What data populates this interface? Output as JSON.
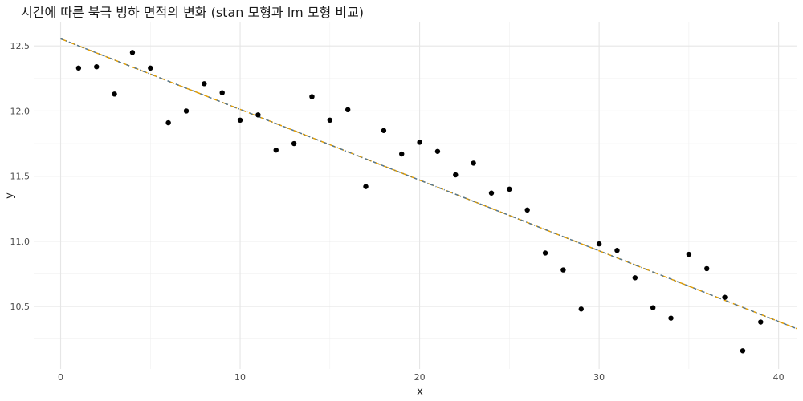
{
  "chart_data": {
    "type": "scatter",
    "title": "시간에 따른 북극 빙하 면적의 변화 (stan 모형과 lm 모형 비교)",
    "xlabel": "x",
    "ylabel": "y",
    "xlim": [
      -1.5,
      41
    ],
    "ylim": [
      10.02,
      12.68
    ],
    "x_ticks": [
      0,
      10,
      20,
      30,
      40
    ],
    "x_tick_labels": [
      "0",
      "10",
      "20",
      "30",
      "40"
    ],
    "y_ticks": [
      10.5,
      11.0,
      11.5,
      12.0,
      12.5
    ],
    "y_tick_labels": [
      "10.5",
      "11.0",
      "11.5",
      "12.0",
      "12.5"
    ],
    "grid": true,
    "points": [
      {
        "x": 1,
        "y": 12.33
      },
      {
        "x": 2,
        "y": 12.34
      },
      {
        "x": 3,
        "y": 12.13
      },
      {
        "x": 4,
        "y": 12.45
      },
      {
        "x": 5,
        "y": 12.33
      },
      {
        "x": 6,
        "y": 11.91
      },
      {
        "x": 7,
        "y": 12.0
      },
      {
        "x": 8,
        "y": 12.21
      },
      {
        "x": 9,
        "y": 12.14
      },
      {
        "x": 10,
        "y": 11.93
      },
      {
        "x": 11,
        "y": 11.97
      },
      {
        "x": 12,
        "y": 11.7
      },
      {
        "x": 13,
        "y": 11.75
      },
      {
        "x": 14,
        "y": 12.11
      },
      {
        "x": 15,
        "y": 11.93
      },
      {
        "x": 16,
        "y": 12.01
      },
      {
        "x": 17,
        "y": 11.42
      },
      {
        "x": 18,
        "y": 11.85
      },
      {
        "x": 19,
        "y": 11.67
      },
      {
        "x": 20,
        "y": 11.76
      },
      {
        "x": 21,
        "y": 11.69
      },
      {
        "x": 22,
        "y": 11.51
      },
      {
        "x": 23,
        "y": 11.6
      },
      {
        "x": 24,
        "y": 11.37
      },
      {
        "x": 25,
        "y": 11.4
      },
      {
        "x": 26,
        "y": 11.24
      },
      {
        "x": 27,
        "y": 10.91
      },
      {
        "x": 28,
        "y": 10.78
      },
      {
        "x": 29,
        "y": 10.48
      },
      {
        "x": 30,
        "y": 10.98
      },
      {
        "x": 31,
        "y": 10.93
      },
      {
        "x": 32,
        "y": 10.72
      },
      {
        "x": 33,
        "y": 10.49
      },
      {
        "x": 34,
        "y": 10.41
      },
      {
        "x": 35,
        "y": 10.9
      },
      {
        "x": 36,
        "y": 10.79
      },
      {
        "x": 37,
        "y": 10.57
      },
      {
        "x": 38,
        "y": 10.16
      },
      {
        "x": 39,
        "y": 10.38
      }
    ],
    "lines": [
      {
        "x": [
          0,
          41
        ],
        "y": [
          12.555,
          10.33
        ],
        "color": "#e69f00",
        "dash": "8,4"
      },
      {
        "x": [
          0,
          41
        ],
        "y": [
          12.555,
          10.33
        ],
        "color": "#56778f",
        "dash": "4,3,1,3"
      }
    ]
  }
}
